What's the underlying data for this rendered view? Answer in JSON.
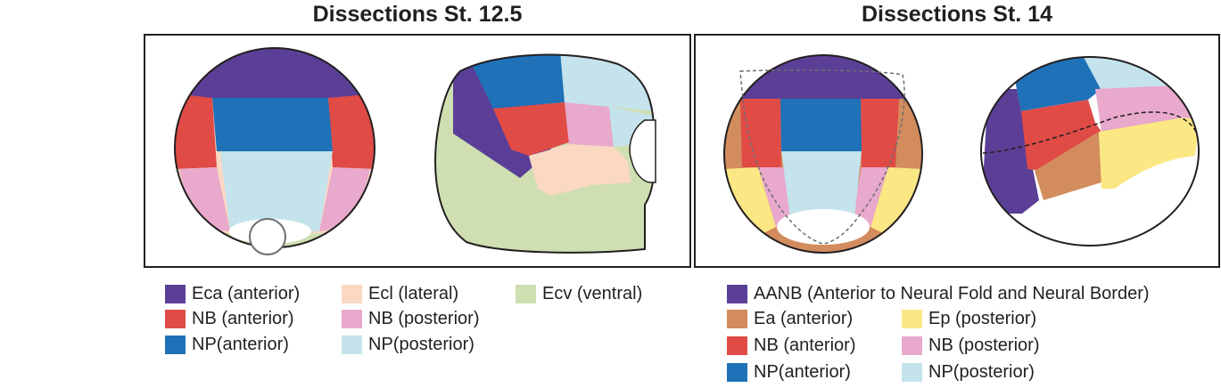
{
  "left": {
    "title": "Dissections St. 12.5",
    "legend": [
      {
        "label": "Eca (anterior)",
        "color": "#5b3f97"
      },
      {
        "label": "NB (anterior)",
        "color": "#e04b46"
      },
      {
        "label": "NP(anterior)",
        "color": "#1f71b8"
      },
      {
        "label": "Ecl (lateral)",
        "color": "#fbd8c2"
      },
      {
        "label": "NB (posterior)",
        "color": "#e8a9cc"
      },
      {
        "label": "NP(posterior)",
        "color": "#c4e3ec"
      },
      {
        "label": "Ecv (ventral)",
        "color": "#cfdfb2"
      }
    ]
  },
  "right": {
    "title": "Dissections St. 14",
    "legend": [
      {
        "label": "AANB (Anterior to Neural Fold and Neural Border)",
        "color": "#5b3f97"
      },
      {
        "label": "Ea (anterior)",
        "color": "#d28c5d"
      },
      {
        "label": "NB (anterior)",
        "color": "#e04b46"
      },
      {
        "label": "NP(anterior)",
        "color": "#1f71b8"
      },
      {
        "label": "Ep (posterior)",
        "color": "#fbe784"
      },
      {
        "label": "NB (posterior)",
        "color": "#e8a9cc"
      },
      {
        "label": "NP(posterior)",
        "color": "#c4e3ec"
      }
    ]
  }
}
